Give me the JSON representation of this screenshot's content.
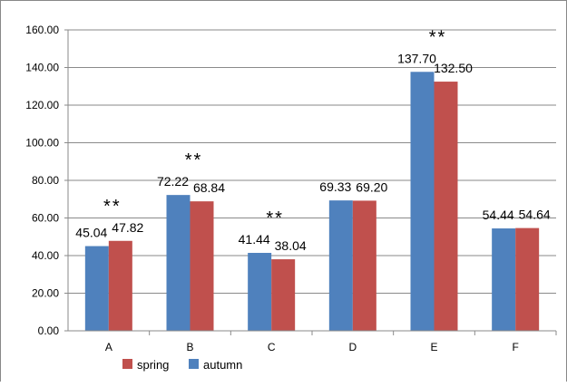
{
  "chart_data": {
    "type": "bar",
    "categories": [
      "A",
      "B",
      "C",
      "D",
      "E",
      "F"
    ],
    "series": [
      {
        "name": "autumn",
        "color": "#4f81bd",
        "values": [
          45.04,
          72.22,
          41.44,
          69.33,
          137.7,
          54.44
        ]
      },
      {
        "name": "spring",
        "color": "#c0504d",
        "values": [
          47.82,
          68.84,
          38.04,
          69.2,
          132.5,
          54.64
        ]
      }
    ],
    "data_labels": {
      "autumn": [
        "45.04",
        "72.22",
        "41.44",
        "69.33",
        "137.70",
        "54.44"
      ],
      "spring": [
        "47.82",
        "68.84",
        "38.04",
        "69.20",
        "132.50",
        "54.64"
      ]
    },
    "significance": [
      "**",
      "**",
      "**",
      "",
      "**",
      ""
    ],
    "y_ticks": [
      "0.00",
      "20.00",
      "40.00",
      "60.00",
      "80.00",
      "100.00",
      "120.00",
      "140.00",
      "160.00"
    ],
    "ylim": [
      0,
      160
    ],
    "grid": true,
    "legend": {
      "position": "bottom-left",
      "order": [
        "spring",
        "autumn"
      ]
    },
    "title": "",
    "xlabel": "",
    "ylabel": ""
  }
}
